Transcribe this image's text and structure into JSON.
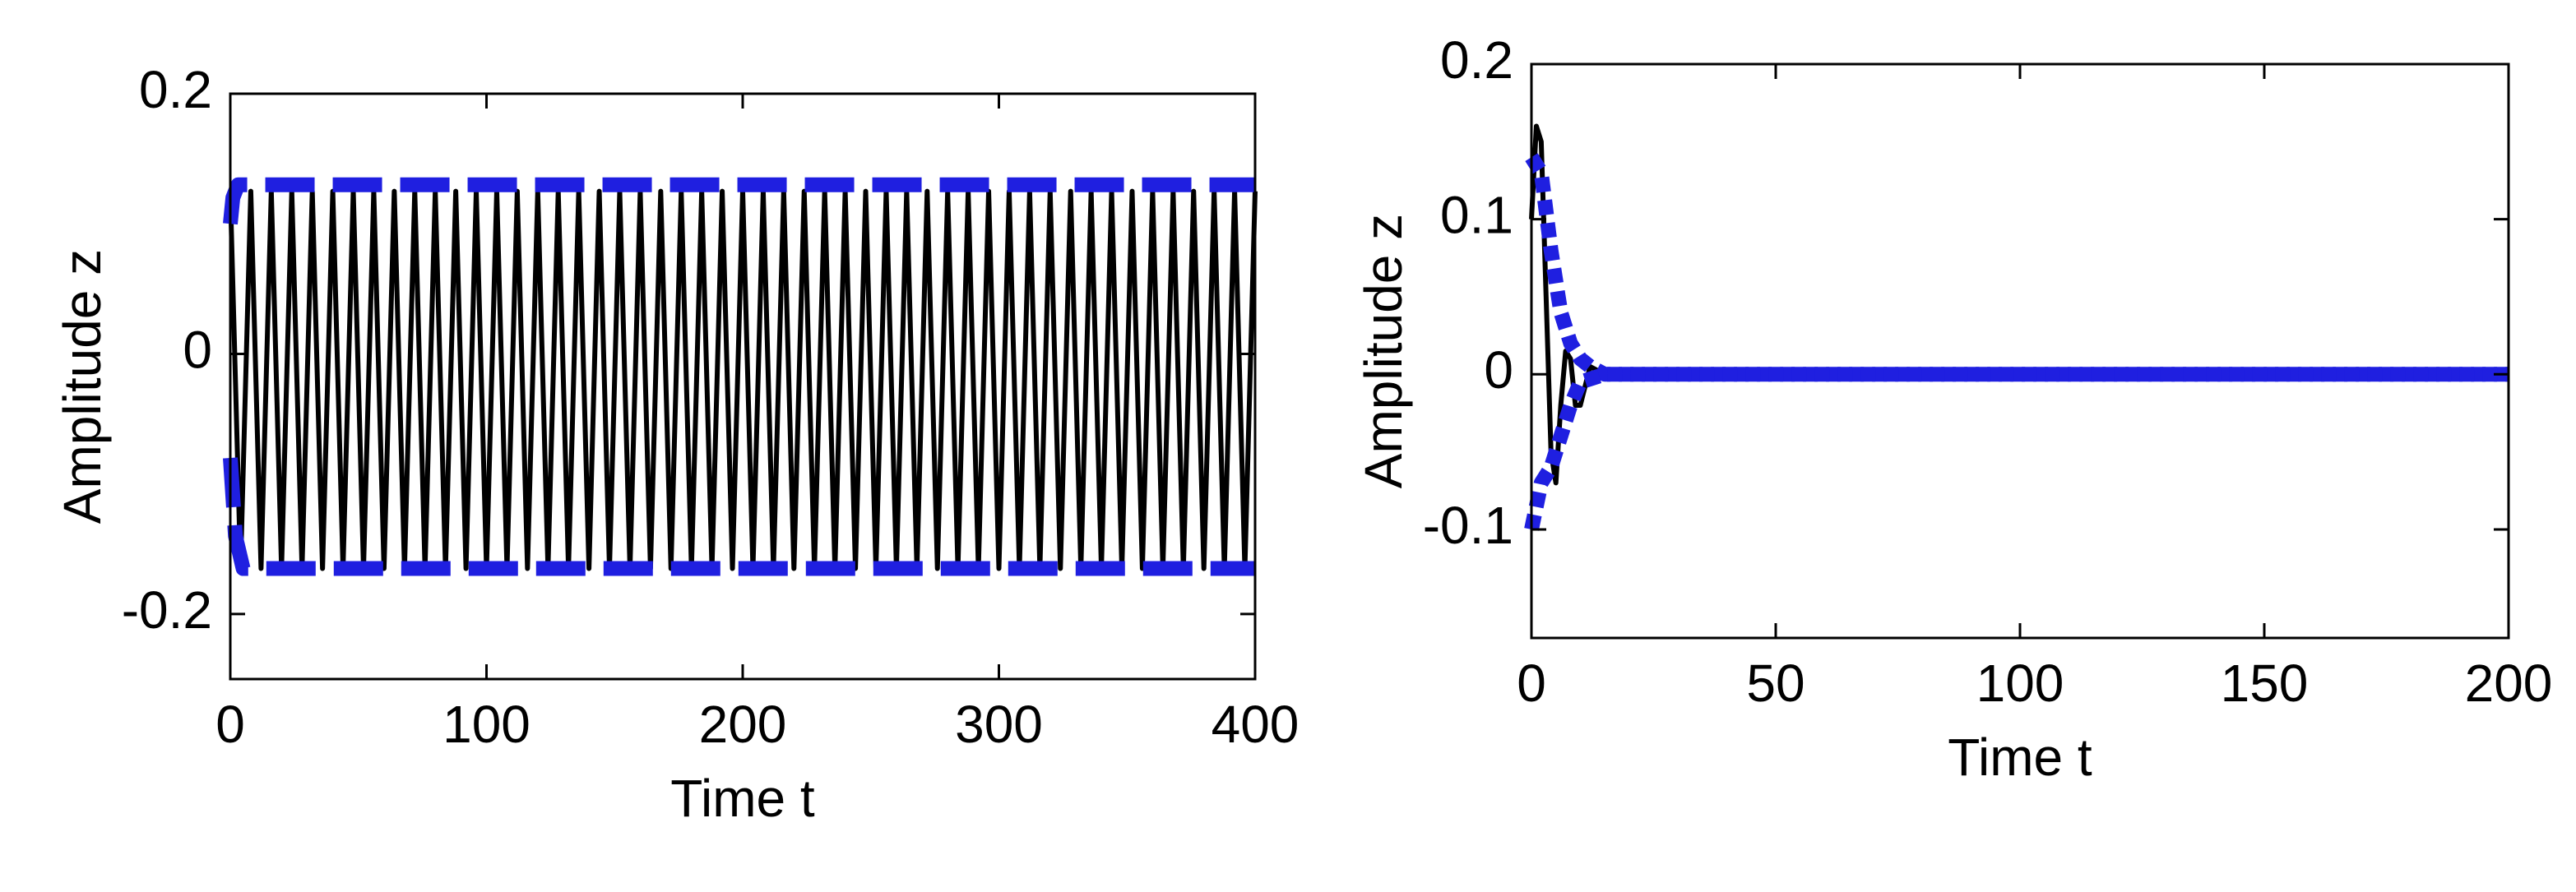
{
  "chart_data": [
    {
      "type": "line",
      "xlabel": "Time t",
      "ylabel": "Amplitude z",
      "xlim": [
        0,
        400
      ],
      "ylim": [
        -0.25,
        0.2
      ],
      "xticks": [
        0,
        100,
        200,
        300,
        400
      ],
      "yticks": [
        -0.2,
        0,
        0.2
      ],
      "series": [
        {
          "color": "#000000",
          "linestyle": "solid",
          "x": [
            0,
            4,
            8,
            12,
            16,
            20,
            24,
            28,
            32,
            36,
            40,
            44,
            48,
            52,
            56,
            60,
            64,
            68,
            72,
            76,
            80,
            84,
            88,
            92,
            96,
            100,
            104,
            108,
            112,
            116,
            120,
            124,
            128,
            132,
            136,
            140,
            144,
            148,
            152,
            156,
            160,
            164,
            168,
            172,
            176,
            180,
            184,
            188,
            192,
            196,
            200,
            204,
            208,
            212,
            216,
            220,
            224,
            228,
            232,
            236,
            240,
            244,
            248,
            252,
            256,
            260,
            264,
            268,
            272,
            276,
            280,
            284,
            288,
            292,
            296,
            300,
            304,
            308,
            312,
            316,
            320,
            324,
            328,
            332,
            336,
            340,
            344,
            348,
            352,
            356,
            360,
            364,
            368,
            372,
            376,
            380,
            384,
            388,
            392,
            396,
            400
          ],
          "values": [
            0.125,
            -0.165,
            0.125,
            -0.165,
            0.125,
            -0.165,
            0.125,
            -0.165,
            0.125,
            -0.165,
            0.125,
            -0.165,
            0.125,
            -0.165,
            0.125,
            -0.165,
            0.125,
            -0.165,
            0.125,
            -0.165,
            0.125,
            -0.165,
            0.125,
            -0.165,
            0.125,
            -0.165,
            0.125,
            -0.165,
            0.125,
            -0.165,
            0.125,
            -0.165,
            0.125,
            -0.165,
            0.125,
            -0.165,
            0.125,
            -0.165,
            0.125,
            -0.165,
            0.125,
            -0.165,
            0.125,
            -0.165,
            0.125,
            -0.165,
            0.125,
            -0.165,
            0.125,
            -0.165,
            0.125,
            -0.165,
            0.125,
            -0.165,
            0.125,
            -0.165,
            0.125,
            -0.165,
            0.125,
            -0.165,
            0.125,
            -0.165,
            0.125,
            -0.165,
            0.125,
            -0.165,
            0.125,
            -0.165,
            0.125,
            -0.165,
            0.125,
            -0.165,
            0.125,
            -0.165,
            0.125,
            -0.165,
            0.125,
            -0.165,
            0.125,
            -0.165,
            0.125,
            -0.165,
            0.125,
            -0.165,
            0.125,
            -0.165,
            0.125,
            -0.165,
            0.125,
            -0.165,
            0.125,
            -0.165,
            0.125,
            -0.165,
            0.125,
            -0.165,
            0.125,
            -0.165,
            0.125,
            -0.165,
            0.125
          ]
        },
        {
          "color": "#1f1fe0",
          "linestyle": "dashed",
          "x": [
            0,
            1,
            3,
            400
          ],
          "values": [
            0.1,
            0.12,
            0.13,
            0.13
          ]
        },
        {
          "color": "#1f1fe0",
          "linestyle": "dashed",
          "x": [
            0,
            2,
            5,
            400
          ],
          "values": [
            -0.08,
            -0.14,
            -0.165,
            -0.165
          ]
        }
      ]
    },
    {
      "type": "line",
      "xlabel": "Time t",
      "ylabel": "Amplitude z",
      "xlim": [
        0,
        200
      ],
      "ylim": [
        -0.17,
        0.2
      ],
      "xticks": [
        0,
        50,
        100,
        150,
        200
      ],
      "yticks": [
        -0.1,
        0,
        0.1,
        0.2
      ],
      "series": [
        {
          "color": "#000000",
          "linestyle": "solid",
          "x": [
            0,
            1,
            2,
            3,
            4,
            5,
            6,
            7,
            8,
            9,
            10,
            12,
            15,
            20,
            200
          ],
          "values": [
            0.1,
            0.16,
            0.15,
            0.05,
            -0.05,
            -0.07,
            -0.02,
            0.015,
            0.01,
            -0.02,
            -0.02,
            0.005,
            0,
            0,
            0
          ]
        },
        {
          "color": "#1f1fe0",
          "linestyle": "dotted",
          "x": [
            0,
            2,
            4,
            6,
            8,
            10,
            12,
            15,
            200
          ],
          "values": [
            0.14,
            0.13,
            0.08,
            0.04,
            0.02,
            0.01,
            0.005,
            0,
            0
          ]
        },
        {
          "color": "#1f1fe0",
          "linestyle": "dotted",
          "x": [
            0,
            2,
            4,
            6,
            8,
            10,
            15,
            200
          ],
          "values": [
            -0.1,
            -0.07,
            -0.06,
            -0.04,
            -0.02,
            -0.005,
            0,
            0
          ]
        }
      ]
    }
  ]
}
